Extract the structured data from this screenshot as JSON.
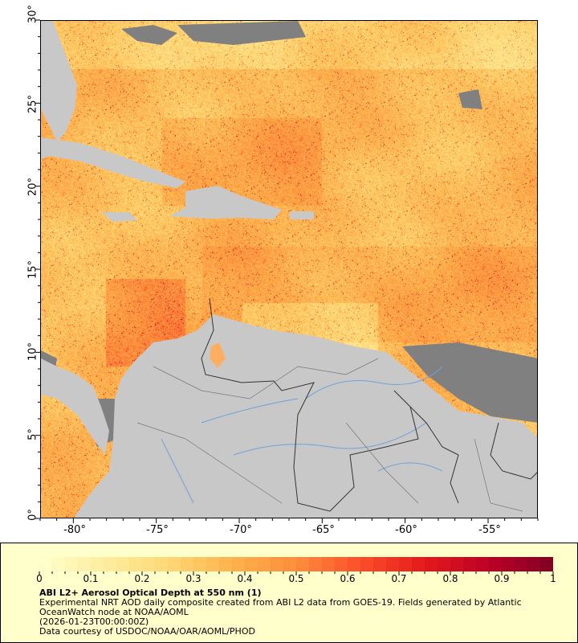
{
  "map": {
    "lat_ticks": [
      "30°",
      "25°",
      "20°",
      "15°",
      "10°",
      "5°",
      "0°"
    ],
    "lon_ticks": [
      "-80°",
      "-75°",
      "-70°",
      "-65°",
      "-60°",
      "-55°"
    ],
    "lat_range": [
      0,
      30
    ],
    "lon_range": [
      -82,
      -52
    ],
    "land_color": "#c8c8c8",
    "no_data_color": "#808080",
    "river_color": "#6fa3d8",
    "border_color": "#333333"
  },
  "legend": {
    "colorbar_ticks": [
      "0",
      "0.1",
      "0.2",
      "0.3",
      "0.4",
      "0.5",
      "0.6",
      "0.7",
      "0.8",
      "0.9",
      "1"
    ],
    "colorbar_range": [
      0,
      1
    ],
    "colorscale": [
      "#ffffcc",
      "#ffeda0",
      "#fed976",
      "#feb24c",
      "#fd8d3c",
      "#fc4e2a",
      "#e31a1c",
      "#bd0026",
      "#800026"
    ],
    "title": "ABI L2+ Aerosol Optical Depth at 550 nm (1)",
    "description": "Experimental NRT AOD daily composite created from ABI L2 data from GOES-19. Fields generated by Atlantic OceanWatch node at NOAA/AOML",
    "time": "(2026-01-23T00:00:00Z)",
    "credit": "Data courtesy of USDOC/NOAA/OAR/AOML/PHOD"
  }
}
